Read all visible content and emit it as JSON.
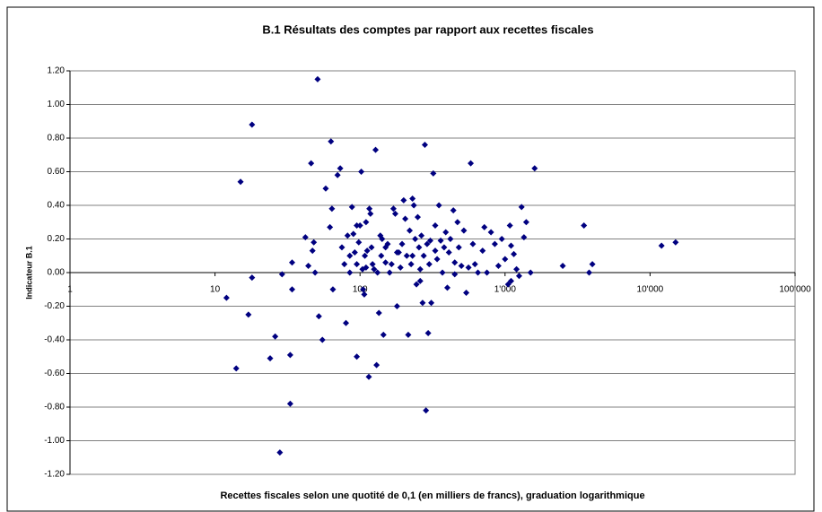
{
  "chart_data": {
    "type": "scatter",
    "title": "B.1 Résultats des comptes par rapport aux recettes fiscales",
    "x_label": "Recettes fiscales selon une quotité de 0,1 (en milliers de francs), graduation logarithmique",
    "y_label": "Indicateur B.1",
    "xscale": "log",
    "grid": true,
    "color": "#000080",
    "xlim": [
      1,
      100000
    ],
    "xticks": [
      1,
      10,
      100,
      {
        "value": 1000,
        "label": "1'000"
      },
      {
        "value": 10000,
        "label": "10'000"
      },
      {
        "value": 100000,
        "label": "100'000"
      }
    ],
    "ylim": [
      -1.2,
      1.2
    ],
    "yticks": [
      {
        "value": 1.2,
        "label": "1.20"
      },
      {
        "value": 1.0,
        "label": "1.00"
      },
      {
        "value": 0.8,
        "label": "0.80"
      },
      {
        "value": 0.6,
        "label": "0.60"
      },
      {
        "value": 0.4,
        "label": "0.40"
      },
      {
        "value": 0.2,
        "label": "0.20"
      },
      {
        "value": 0,
        "label": "0.00"
      },
      {
        "value": -0.2,
        "label": "-0.20"
      },
      {
        "value": -0.4,
        "label": "-0.40"
      },
      {
        "value": -0.6,
        "label": "-0.60"
      },
      {
        "value": -0.8,
        "label": "-0.80"
      },
      {
        "value": -1.0,
        "label": "-1.00"
      },
      {
        "value": -1.2,
        "label": "-1.20"
      }
    ],
    "x": [
      12,
      14,
      15,
      18,
      17,
      18,
      24,
      26,
      28,
      29,
      34,
      34,
      33,
      33,
      42,
      44,
      46,
      48,
      47,
      49,
      51,
      52,
      55,
      58,
      62,
      63,
      64,
      65,
      70,
      73,
      75,
      78,
      80,
      82,
      85,
      88,
      90,
      92,
      95,
      95,
      98,
      100,
      102,
      104,
      105,
      107,
      108,
      110,
      112,
      115,
      116,
      118,
      120,
      122,
      125,
      128,
      130,
      132,
      135,
      138,
      140,
      142,
      145,
      150,
      155,
      160,
      165,
      170,
      175,
      180,
      185,
      190,
      195,
      200,
      205,
      210,
      215,
      220,
      225,
      230,
      235,
      240,
      245,
      250,
      255,
      260,
      265,
      270,
      275,
      280,
      285,
      290,
      295,
      300,
      305,
      310,
      320,
      330,
      340,
      350,
      360,
      370,
      380,
      390,
      400,
      410,
      420,
      440,
      450,
      470,
      480,
      500,
      520,
      540,
      560,
      580,
      600,
      650,
      700,
      720,
      750,
      800,
      850,
      900,
      950,
      1000,
      1050,
      1080,
      1100,
      1150,
      1200,
      1250,
      1300,
      1350,
      1400,
      1500,
      1600,
      2500,
      3500,
      3800,
      4000,
      12000,
      15000,
      85,
      95,
      110,
      150,
      180,
      230,
      260,
      330,
      450,
      620,
      1100
    ],
    "values": [
      -0.15,
      -0.57,
      0.54,
      0.88,
      -0.25,
      -0.03,
      -0.51,
      -0.38,
      -1.07,
      -0.01,
      0.06,
      -0.1,
      -0.49,
      -0.78,
      0.21,
      0.04,
      0.65,
      0.18,
      0.13,
      0.0,
      1.15,
      -0.26,
      -0.4,
      0.5,
      0.27,
      0.78,
      0.38,
      -0.1,
      0.58,
      0.62,
      0.15,
      0.05,
      -0.3,
      0.22,
      0.1,
      0.39,
      0.23,
      0.12,
      -0.5,
      0.05,
      0.18,
      0.28,
      0.6,
      0.02,
      -0.1,
      -0.13,
      0.1,
      0.3,
      0.13,
      -0.62,
      0.38,
      0.35,
      0.15,
      0.05,
      0.02,
      0.73,
      -0.55,
      0.0,
      -0.24,
      0.22,
      0.1,
      0.2,
      -0.37,
      0.06,
      0.17,
      0.0,
      0.05,
      0.38,
      0.35,
      -0.2,
      0.12,
      0.03,
      0.17,
      0.43,
      0.32,
      0.1,
      -0.37,
      0.25,
      0.05,
      0.44,
      0.4,
      0.2,
      -0.07,
      0.33,
      0.15,
      0.02,
      0.22,
      -0.18,
      0.1,
      0.76,
      -0.82,
      0.17,
      -0.36,
      0.05,
      0.19,
      -0.18,
      0.59,
      0.28,
      0.08,
      0.4,
      0.19,
      0.0,
      0.15,
      0.24,
      -0.09,
      0.12,
      0.2,
      0.37,
      0.06,
      0.3,
      0.15,
      0.04,
      0.25,
      -0.12,
      0.03,
      0.65,
      0.17,
      0.0,
      0.13,
      0.27,
      0.0,
      0.24,
      0.17,
      0.04,
      0.2,
      0.08,
      -0.07,
      0.28,
      0.16,
      0.11,
      0.02,
      -0.02,
      0.39,
      0.21,
      0.3,
      0.0,
      0.62,
      0.04,
      0.28,
      0.0,
      0.05,
      0.16,
      0.18,
      0.0,
      0.28,
      0.03,
      0.15,
      0.12,
      0.1,
      -0.05,
      0.13,
      -0.01,
      0.05,
      -0.05
    ]
  }
}
